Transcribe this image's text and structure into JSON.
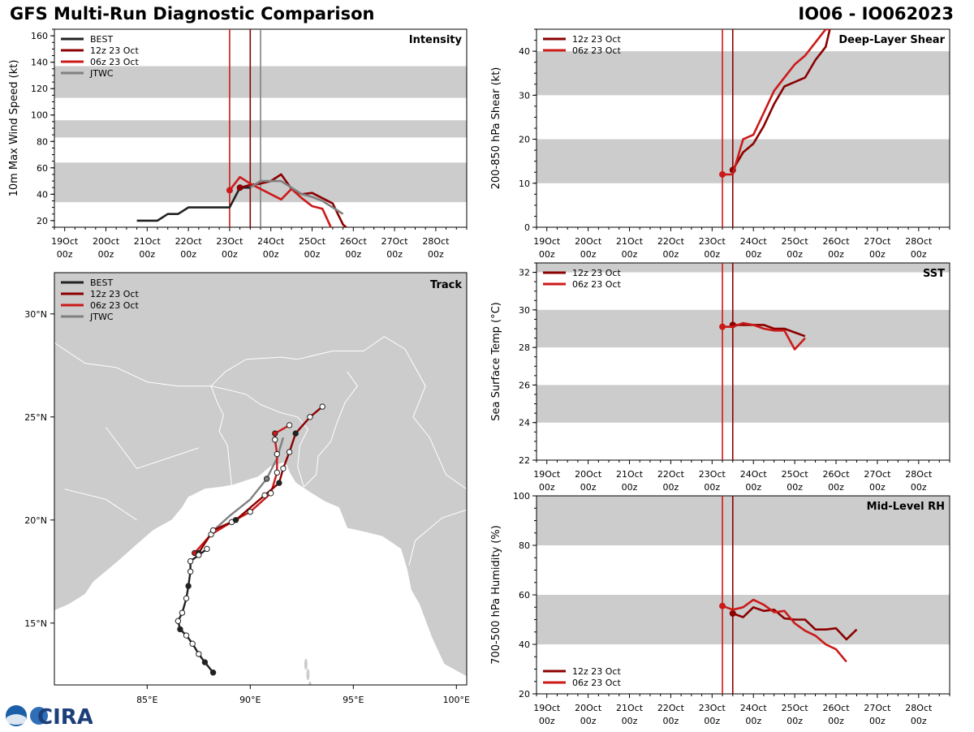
{
  "header": {
    "title": "GFS Multi-Run Diagnostic Comparison",
    "storm": "IO06 - IO062023"
  },
  "logo": {
    "text": "CIRA"
  },
  "colors": {
    "best": "#222222",
    "run12": "#8b0000",
    "run06": "#cc1a1a",
    "jtwc": "#808080",
    "band": "#cccccc",
    "land": "#cccccc"
  },
  "time_axis": {
    "ticks": [
      {
        "d": "19Oct",
        "t": "00z"
      },
      {
        "d": "20Oct",
        "t": "00z"
      },
      {
        "d": "21Oct",
        "t": "00z"
      },
      {
        "d": "22Oct",
        "t": "00z"
      },
      {
        "d": "23Oct",
        "t": "00z"
      },
      {
        "d": "24Oct",
        "t": "00z"
      },
      {
        "d": "25Oct",
        "t": "00z"
      },
      {
        "d": "26Oct",
        "t": "00z"
      },
      {
        "d": "27Oct",
        "t": "00z"
      },
      {
        "d": "28Oct",
        "t": "00z"
      }
    ]
  },
  "chart_data": [
    {
      "id": "intensity",
      "type": "line",
      "title": "Intensity",
      "ylabel": "10m Max Wind Speed (kt)",
      "xlim": [
        -0.25,
        9.75
      ],
      "ylim": [
        15,
        165
      ],
      "yticks": [
        20,
        40,
        60,
        80,
        100,
        120,
        140,
        160
      ],
      "bands": [
        [
          34,
          64
        ],
        [
          83,
          96
        ],
        [
          113,
          137
        ]
      ],
      "vlines": [
        {
          "x": 4.0,
          "series": "06z 23 Oct"
        },
        {
          "x": 4.5,
          "series": "12z 23 Oct"
        },
        {
          "x": 4.75,
          "series": "JTWC"
        }
      ],
      "legend": [
        "BEST",
        "12z 23 Oct",
        "06z 23 Oct",
        "JTWC"
      ],
      "series": [
        {
          "name": "BEST",
          "x": [
            1.75,
            2.0,
            2.25,
            2.5,
            2.75,
            3.0,
            3.25,
            3.5,
            3.75,
            4.0,
            4.25,
            4.5
          ],
          "y": [
            20,
            20,
            20,
            25,
            25,
            30,
            30,
            30,
            30,
            30,
            45,
            45
          ]
        },
        {
          "name": "12z 23 Oct",
          "x": [
            4.25,
            4.5,
            4.75,
            5.0,
            5.25,
            5.5,
            5.75,
            6.0,
            6.25,
            6.5,
            6.75,
            6.9
          ],
          "y": [
            45,
            47,
            48,
            50,
            55,
            44,
            40,
            41,
            37,
            33,
            17,
            13
          ]
        },
        {
          "name": "06z 23 Oct",
          "x": [
            4.0,
            4.25,
            4.5,
            4.75,
            5.0,
            5.25,
            5.5,
            5.75,
            6.0,
            6.25,
            6.5,
            6.75
          ],
          "y": [
            43,
            53,
            48,
            44,
            40,
            36,
            44,
            37,
            31,
            29,
            12,
            7
          ]
        },
        {
          "name": "JTWC",
          "x": [
            4.5,
            4.75,
            5.0,
            5.25,
            5.5,
            5.75,
            6.0,
            6.25,
            6.5,
            6.75
          ],
          "y": [
            45,
            50,
            50,
            50,
            45,
            40,
            38,
            35,
            30,
            25
          ]
        }
      ]
    },
    {
      "id": "shear",
      "type": "line",
      "title": "Deep-Layer Shear",
      "ylabel": "200-850 hPa Shear (kt)",
      "xlim": [
        -0.25,
        9.75
      ],
      "ylim": [
        0,
        45
      ],
      "yticks": [
        0,
        10,
        20,
        30,
        40
      ],
      "bands": [
        [
          10,
          20
        ],
        [
          30,
          40
        ]
      ],
      "vlines": [
        {
          "x": 4.25,
          "series": "06z 23 Oct"
        },
        {
          "x": 4.5,
          "series": "12z 23 Oct"
        }
      ],
      "legend": [
        "12z 23 Oct",
        "06z 23 Oct"
      ],
      "series": [
        {
          "name": "12z 23 Oct",
          "x": [
            4.5,
            4.75,
            5.0,
            5.25,
            5.5,
            5.75,
            6.0,
            6.25,
            6.5,
            6.75,
            6.85
          ],
          "y": [
            13,
            17,
            19,
            23,
            28,
            32,
            33,
            34,
            38,
            41,
            45
          ]
        },
        {
          "name": "06z 23 Oct",
          "x": [
            4.25,
            4.5,
            4.75,
            5.0,
            5.25,
            5.5,
            5.75,
            6.0,
            6.25,
            6.5,
            6.75,
            6.85
          ],
          "y": [
            12,
            12,
            20,
            21,
            26,
            31,
            34,
            37,
            39,
            42,
            45,
            45
          ]
        }
      ]
    },
    {
      "id": "sst",
      "type": "line",
      "title": "SST",
      "ylabel": "Sea Surface Temp (°C)",
      "xlim": [
        -0.25,
        9.75
      ],
      "ylim": [
        22,
        32.5
      ],
      "yticks": [
        22,
        24,
        26,
        28,
        30,
        32
      ],
      "bands": [
        [
          24,
          26
        ],
        [
          28,
          30
        ],
        [
          32,
          32.5
        ]
      ],
      "vlines": [
        {
          "x": 4.25,
          "series": "06z 23 Oct"
        },
        {
          "x": 4.5,
          "series": "12z 23 Oct"
        }
      ],
      "legend": [
        "12z 23 Oct",
        "06z 23 Oct"
      ],
      "series": [
        {
          "name": "12z 23 Oct",
          "x": [
            4.5,
            4.75,
            5.0,
            5.25,
            5.5,
            5.75,
            6.0,
            6.25
          ],
          "y": [
            29.2,
            29.2,
            29.2,
            29.2,
            29.0,
            29.0,
            28.8,
            28.6
          ]
        },
        {
          "name": "06z 23 Oct",
          "x": [
            4.25,
            4.5,
            4.75,
            5.0,
            5.25,
            5.5,
            5.75,
            6.0,
            6.25
          ],
          "y": [
            29.1,
            29.1,
            29.3,
            29.2,
            29.0,
            28.9,
            28.9,
            27.9,
            28.5
          ]
        }
      ]
    },
    {
      "id": "rh",
      "type": "line",
      "title": "Mid-Level RH",
      "ylabel": "700-500 hPa Humidity (%)",
      "xlim": [
        -0.25,
        9.75
      ],
      "ylim": [
        20,
        100
      ],
      "yticks": [
        20,
        40,
        60,
        80,
        100
      ],
      "bands": [
        [
          40,
          60
        ],
        [
          80,
          100
        ]
      ],
      "vlines": [
        {
          "x": 4.25,
          "series": "06z 23 Oct"
        },
        {
          "x": 4.5,
          "series": "12z 23 Oct"
        }
      ],
      "legend": [
        "12z 23 Oct",
        "06z 23 Oct"
      ],
      "series": [
        {
          "name": "12z 23 Oct",
          "x": [
            4.5,
            4.75,
            5.0,
            5.25,
            5.5,
            5.75,
            6.0,
            6.25,
            6.5,
            6.75,
            7.0,
            7.25,
            7.5
          ],
          "y": [
            52.5,
            51,
            55,
            53.5,
            54,
            50.5,
            50,
            50,
            46,
            46,
            46.5,
            42,
            46
          ]
        },
        {
          "name": "06z 23 Oct",
          "x": [
            4.25,
            4.5,
            4.75,
            5.0,
            5.25,
            5.5,
            5.75,
            6.0,
            6.25,
            6.5,
            6.75,
            7.0,
            7.25
          ],
          "y": [
            55.5,
            54,
            55,
            58,
            56,
            53,
            53.5,
            48.5,
            45.5,
            43.5,
            40,
            38,
            33
          ]
        }
      ]
    },
    {
      "id": "track",
      "type": "scatter",
      "title": "Track",
      "xlim": [
        80.5,
        100.5
      ],
      "ylim": [
        12,
        32
      ],
      "xticks": [
        85,
        90,
        95,
        100
      ],
      "xticklabels": [
        "85°E",
        "90°E",
        "95°E",
        "100°E"
      ],
      "yticks": [
        15,
        20,
        25,
        30
      ],
      "yticklabels": [
        "15°N",
        "20°N",
        "25°N",
        "30°N"
      ],
      "legend": [
        "BEST",
        "12z 23 Oct",
        "06z 23 Oct",
        "JTWC"
      ],
      "series": [
        {
          "name": "BEST",
          "lon": [
            88.2,
            87.8,
            87.5,
            87.2,
            86.9,
            86.6,
            86.5,
            86.7,
            86.9,
            87.0,
            87.1,
            87.1,
            87.5,
            87.9
          ],
          "lat": [
            12.6,
            13.1,
            13.5,
            14.0,
            14.4,
            14.7,
            15.1,
            15.5,
            16.2,
            16.8,
            17.5,
            18.0,
            18.3,
            18.6
          ],
          "filled": [
            true,
            true,
            false,
            false,
            false,
            true,
            false,
            false,
            false,
            true,
            false,
            false,
            false,
            false
          ]
        },
        {
          "name": "12z 23 Oct",
          "lon": [
            87.5,
            88.2,
            89.3,
            90.7,
            91.4,
            91.6,
            91.9,
            92.2,
            92.9,
            93.5
          ],
          "lat": [
            18.4,
            19.5,
            20.0,
            21.2,
            21.8,
            22.5,
            23.3,
            24.2,
            25.0,
            25.5
          ],
          "filled": [
            true,
            false,
            true,
            false,
            true,
            false,
            false,
            true,
            false,
            false
          ]
        },
        {
          "name": "06z 23 Oct",
          "lon": [
            87.3,
            88.1,
            89.1,
            90.0,
            91.0,
            91.3,
            91.3,
            91.2,
            91.2,
            91.9
          ],
          "lat": [
            18.4,
            19.3,
            19.9,
            20.4,
            21.3,
            22.3,
            23.2,
            23.9,
            24.2,
            24.6
          ],
          "filled": [
            true,
            false,
            false,
            false,
            false,
            false,
            false,
            false,
            true,
            false
          ]
        },
        {
          "name": "JTWC",
          "lon": [
            88.0,
            89.0,
            90.0,
            90.8,
            91.3,
            91.6
          ],
          "lat": [
            19.3,
            20.2,
            21.0,
            22.0,
            23.0,
            24.0
          ],
          "filled": [
            false,
            false,
            false,
            true,
            false,
            false
          ]
        }
      ]
    }
  ]
}
